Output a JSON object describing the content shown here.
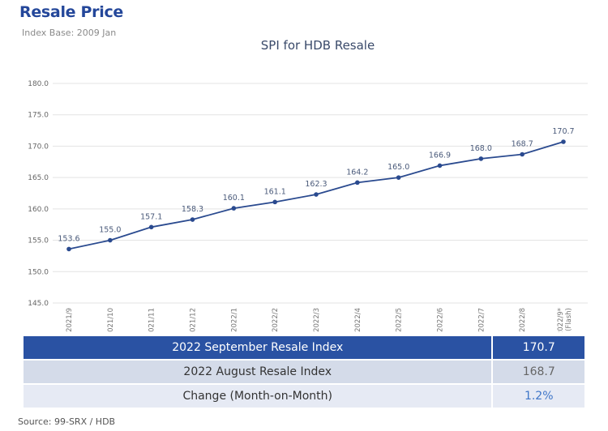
{
  "header": {
    "title": "Resale Price",
    "subtitle": "Index Base: 2009 Jan"
  },
  "chart_data": {
    "type": "line",
    "title": "SPI for HDB Resale",
    "categories": [
      "2021/9",
      "2021/10",
      "2021/11",
      "2021/12",
      "2022/1",
      "2022/2",
      "2022/3",
      "2022/4",
      "2022/5",
      "2022/6",
      "2022/7",
      "2022/8",
      "2022/9* (Flash)"
    ],
    "values": [
      153.6,
      155.0,
      157.1,
      158.3,
      160.1,
      161.1,
      162.3,
      164.2,
      165.0,
      166.9,
      168.0,
      168.7,
      170.7
    ],
    "ylim": [
      145,
      180
    ],
    "yticks": [
      "145.0",
      "150.0",
      "155.0",
      "160.0",
      "165.0",
      "170.0",
      "175.0",
      "180.0"
    ],
    "grid": true,
    "line_color": "#2a4a8f"
  },
  "table": {
    "rows": [
      {
        "label": "2022 September Resale Index",
        "value": "170.7"
      },
      {
        "label": "2022 August Resale Index",
        "value": "168.7"
      },
      {
        "label": "Change (Month-on-Month)",
        "value": "1.2%"
      }
    ]
  },
  "source": "Source: 99-SRX / HDB"
}
